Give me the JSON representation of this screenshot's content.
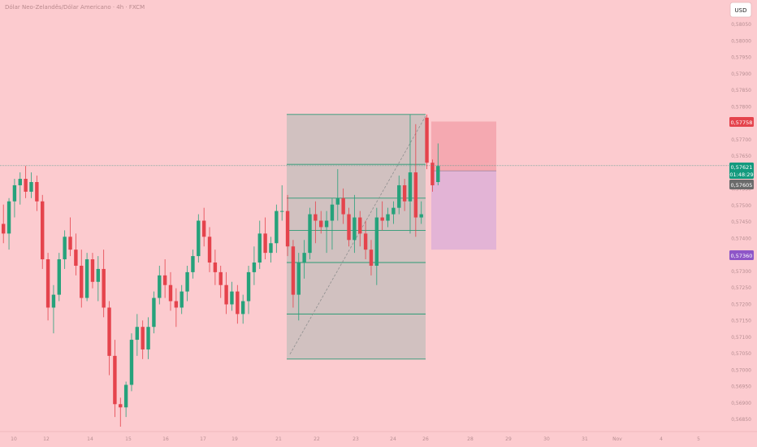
{
  "header": {
    "title": "Dólar Neo-Zelandês/Dólar Americano · 4h · FXCM"
  },
  "currency_button": {
    "label": "USD"
  },
  "price_scale": {
    "ticks": [
      "0,58050",
      "0,58000",
      "0,57950",
      "0,57900",
      "0,57850",
      "0,57800",
      "0,57750",
      "0,57700",
      "0,57650",
      "0,57600",
      "0,57550",
      "0,57500",
      "0,57450",
      "0,57400",
      "0,57350",
      "0,57300",
      "0,57250",
      "0,57200",
      "0,57150",
      "0,57100",
      "0,57050",
      "0,57000",
      "0,56950",
      "0,56900",
      "0,56850"
    ],
    "tags": {
      "target": "0,57758",
      "current_price": "0,57621",
      "countdown": "01:48:29",
      "entry": "0,57605",
      "stop": "0,57360"
    }
  },
  "time_scale": {
    "ticks": [
      "10",
      "12",
      "14",
      "15",
      "16",
      "17",
      "19",
      "21",
      "22",
      "23",
      "24",
      "26",
      "28",
      "29",
      "30",
      "31",
      "Nov",
      "4",
      "5"
    ]
  },
  "colors": {
    "background": "#fccbcf",
    "bull": "#26a27b",
    "bear": "#e5434c",
    "target_tag": "#e5434c",
    "price_tag": "#149a7e",
    "entry_tag": "#6b6b6b",
    "stop_tag": "#8e56c8",
    "fib_box": "#c9bfbd",
    "risk_zone": "#f5a9b1",
    "reward_zone": "#e3b4d6"
  },
  "chart_data": {
    "type": "candlestick",
    "symbol": "NZD/USD",
    "timeframe": "4h",
    "ylim": [
      0.5681,
      0.5808
    ],
    "candles": [
      {
        "o": 0.5744,
        "h": 0.575,
        "l": 0.5738,
        "c": 0.5741
      },
      {
        "o": 0.5741,
        "h": 0.5752,
        "l": 0.5736,
        "c": 0.5751
      },
      {
        "o": 0.5751,
        "h": 0.5758,
        "l": 0.5746,
        "c": 0.5756
      },
      {
        "o": 0.5756,
        "h": 0.576,
        "l": 0.575,
        "c": 0.5758
      },
      {
        "o": 0.5758,
        "h": 0.5762,
        "l": 0.5752,
        "c": 0.5754
      },
      {
        "o": 0.5754,
        "h": 0.576,
        "l": 0.5752,
        "c": 0.5757
      },
      {
        "o": 0.5757,
        "h": 0.5759,
        "l": 0.5748,
        "c": 0.5751
      },
      {
        "o": 0.5751,
        "h": 0.5753,
        "l": 0.573,
        "c": 0.5733
      },
      {
        "o": 0.5733,
        "h": 0.5735,
        "l": 0.5714,
        "c": 0.5718
      },
      {
        "o": 0.5718,
        "h": 0.5725,
        "l": 0.571,
        "c": 0.5722
      },
      {
        "o": 0.5722,
        "h": 0.5735,
        "l": 0.572,
        "c": 0.5733
      },
      {
        "o": 0.5733,
        "h": 0.5742,
        "l": 0.573,
        "c": 0.574
      },
      {
        "o": 0.574,
        "h": 0.5746,
        "l": 0.5734,
        "c": 0.5736
      },
      {
        "o": 0.5736,
        "h": 0.5741,
        "l": 0.5728,
        "c": 0.5731
      },
      {
        "o": 0.5731,
        "h": 0.5736,
        "l": 0.5718,
        "c": 0.5721
      },
      {
        "o": 0.5721,
        "h": 0.5735,
        "l": 0.572,
        "c": 0.5733
      },
      {
        "o": 0.5733,
        "h": 0.5735,
        "l": 0.5724,
        "c": 0.5726
      },
      {
        "o": 0.5726,
        "h": 0.5734,
        "l": 0.572,
        "c": 0.573
      },
      {
        "o": 0.573,
        "h": 0.5736,
        "l": 0.5715,
        "c": 0.5718
      },
      {
        "o": 0.5718,
        "h": 0.572,
        "l": 0.5697,
        "c": 0.5703
      },
      {
        "o": 0.5703,
        "h": 0.5708,
        "l": 0.5684,
        "c": 0.5688
      },
      {
        "o": 0.5688,
        "h": 0.569,
        "l": 0.5681,
        "c": 0.5687
      },
      {
        "o": 0.5687,
        "h": 0.5695,
        "l": 0.5684,
        "c": 0.5694
      },
      {
        "o": 0.5694,
        "h": 0.571,
        "l": 0.5692,
        "c": 0.5708
      },
      {
        "o": 0.5708,
        "h": 0.5716,
        "l": 0.5703,
        "c": 0.5712
      },
      {
        "o": 0.5712,
        "h": 0.5714,
        "l": 0.5702,
        "c": 0.5705
      },
      {
        "o": 0.5705,
        "h": 0.5715,
        "l": 0.5702,
        "c": 0.5712
      },
      {
        "o": 0.5712,
        "h": 0.5723,
        "l": 0.571,
        "c": 0.5721
      },
      {
        "o": 0.5721,
        "h": 0.5731,
        "l": 0.5719,
        "c": 0.5728
      },
      {
        "o": 0.5728,
        "h": 0.5733,
        "l": 0.5721,
        "c": 0.5725
      },
      {
        "o": 0.5725,
        "h": 0.5729,
        "l": 0.5717,
        "c": 0.572
      },
      {
        "o": 0.572,
        "h": 0.5724,
        "l": 0.5712,
        "c": 0.5718
      },
      {
        "o": 0.5718,
        "h": 0.5725,
        "l": 0.5716,
        "c": 0.5723
      },
      {
        "o": 0.5723,
        "h": 0.5731,
        "l": 0.572,
        "c": 0.5729
      },
      {
        "o": 0.5729,
        "h": 0.5736,
        "l": 0.5727,
        "c": 0.5734
      },
      {
        "o": 0.5734,
        "h": 0.5747,
        "l": 0.5732,
        "c": 0.5745
      },
      {
        "o": 0.5745,
        "h": 0.5749,
        "l": 0.5737,
        "c": 0.574
      },
      {
        "o": 0.574,
        "h": 0.5743,
        "l": 0.5729,
        "c": 0.5732
      },
      {
        "o": 0.5732,
        "h": 0.5736,
        "l": 0.5725,
        "c": 0.5729
      },
      {
        "o": 0.5729,
        "h": 0.5731,
        "l": 0.5721,
        "c": 0.5725
      },
      {
        "o": 0.5725,
        "h": 0.5729,
        "l": 0.5716,
        "c": 0.5719
      },
      {
        "o": 0.5719,
        "h": 0.5726,
        "l": 0.5717,
        "c": 0.5723
      },
      {
        "o": 0.5723,
        "h": 0.5725,
        "l": 0.5713,
        "c": 0.5716
      },
      {
        "o": 0.5716,
        "h": 0.5722,
        "l": 0.5713,
        "c": 0.572
      },
      {
        "o": 0.572,
        "h": 0.5731,
        "l": 0.5716,
        "c": 0.5729
      },
      {
        "o": 0.5729,
        "h": 0.5737,
        "l": 0.5725,
        "c": 0.5732
      },
      {
        "o": 0.5732,
        "h": 0.5745,
        "l": 0.573,
        "c": 0.5741
      },
      {
        "o": 0.5741,
        "h": 0.5746,
        "l": 0.5733,
        "c": 0.5735
      },
      {
        "o": 0.5735,
        "h": 0.574,
        "l": 0.5732,
        "c": 0.5738
      },
      {
        "o": 0.5738,
        "h": 0.575,
        "l": 0.5735,
        "c": 0.5748
      },
      {
        "o": 0.5748,
        "h": 0.5756,
        "l": 0.5745,
        "c": 0.5748
      },
      {
        "o": 0.5748,
        "h": 0.5753,
        "l": 0.5734,
        "c": 0.5737
      },
      {
        "o": 0.5737,
        "h": 0.5739,
        "l": 0.5718,
        "c": 0.5722
      },
      {
        "o": 0.5722,
        "h": 0.5735,
        "l": 0.5714,
        "c": 0.5732
      },
      {
        "o": 0.5732,
        "h": 0.5739,
        "l": 0.5727,
        "c": 0.5735
      },
      {
        "o": 0.5735,
        "h": 0.5749,
        "l": 0.5733,
        "c": 0.5747
      },
      {
        "o": 0.5747,
        "h": 0.5751,
        "l": 0.5738,
        "c": 0.5745
      },
      {
        "o": 0.5745,
        "h": 0.5748,
        "l": 0.5741,
        "c": 0.5743
      },
      {
        "o": 0.5743,
        "h": 0.5748,
        "l": 0.5735,
        "c": 0.5745
      },
      {
        "o": 0.5745,
        "h": 0.5752,
        "l": 0.5736,
        "c": 0.575
      },
      {
        "o": 0.575,
        "h": 0.5761,
        "l": 0.5745,
        "c": 0.5752
      },
      {
        "o": 0.5752,
        "h": 0.5755,
        "l": 0.5744,
        "c": 0.5747
      },
      {
        "o": 0.5747,
        "h": 0.5749,
        "l": 0.5737,
        "c": 0.5739
      },
      {
        "o": 0.5739,
        "h": 0.5753,
        "l": 0.5735,
        "c": 0.5746
      },
      {
        "o": 0.5746,
        "h": 0.5748,
        "l": 0.5737,
        "c": 0.5741
      },
      {
        "o": 0.5741,
        "h": 0.5745,
        "l": 0.5733,
        "c": 0.5736
      },
      {
        "o": 0.5736,
        "h": 0.5739,
        "l": 0.5728,
        "c": 0.5731
      },
      {
        "o": 0.5731,
        "h": 0.5749,
        "l": 0.5725,
        "c": 0.5746
      },
      {
        "o": 0.5746,
        "h": 0.5751,
        "l": 0.5742,
        "c": 0.5745
      },
      {
        "o": 0.5745,
        "h": 0.5749,
        "l": 0.5743,
        "c": 0.5747
      },
      {
        "o": 0.5747,
        "h": 0.5751,
        "l": 0.5744,
        "c": 0.5749
      },
      {
        "o": 0.5749,
        "h": 0.5759,
        "l": 0.5747,
        "c": 0.5756
      },
      {
        "o": 0.5756,
        "h": 0.5758,
        "l": 0.5748,
        "c": 0.5751
      },
      {
        "o": 0.5751,
        "h": 0.5778,
        "l": 0.5741,
        "c": 0.576
      },
      {
        "o": 0.576,
        "h": 0.5775,
        "l": 0.574,
        "c": 0.5746
      },
      {
        "o": 0.5746,
        "h": 0.5751,
        "l": 0.5744,
        "c": 0.5747
      },
      {
        "o": 0.5777,
        "h": 0.5778,
        "l": 0.5761,
        "c": 0.5763
      },
      {
        "o": 0.5763,
        "h": 0.5764,
        "l": 0.5754,
        "c": 0.5756
      },
      {
        "o": 0.5757,
        "h": 0.5769,
        "l": 0.5756,
        "c": 0.5762
      }
    ],
    "fib_levels": [
      0.5778,
      0.57625,
      0.5752,
      0.5742,
      0.5732,
      0.5716,
      0.5702
    ],
    "position": {
      "entry": 0.57605,
      "target": 0.57758,
      "stop": 0.5736
    },
    "current_price": 0.57621
  }
}
